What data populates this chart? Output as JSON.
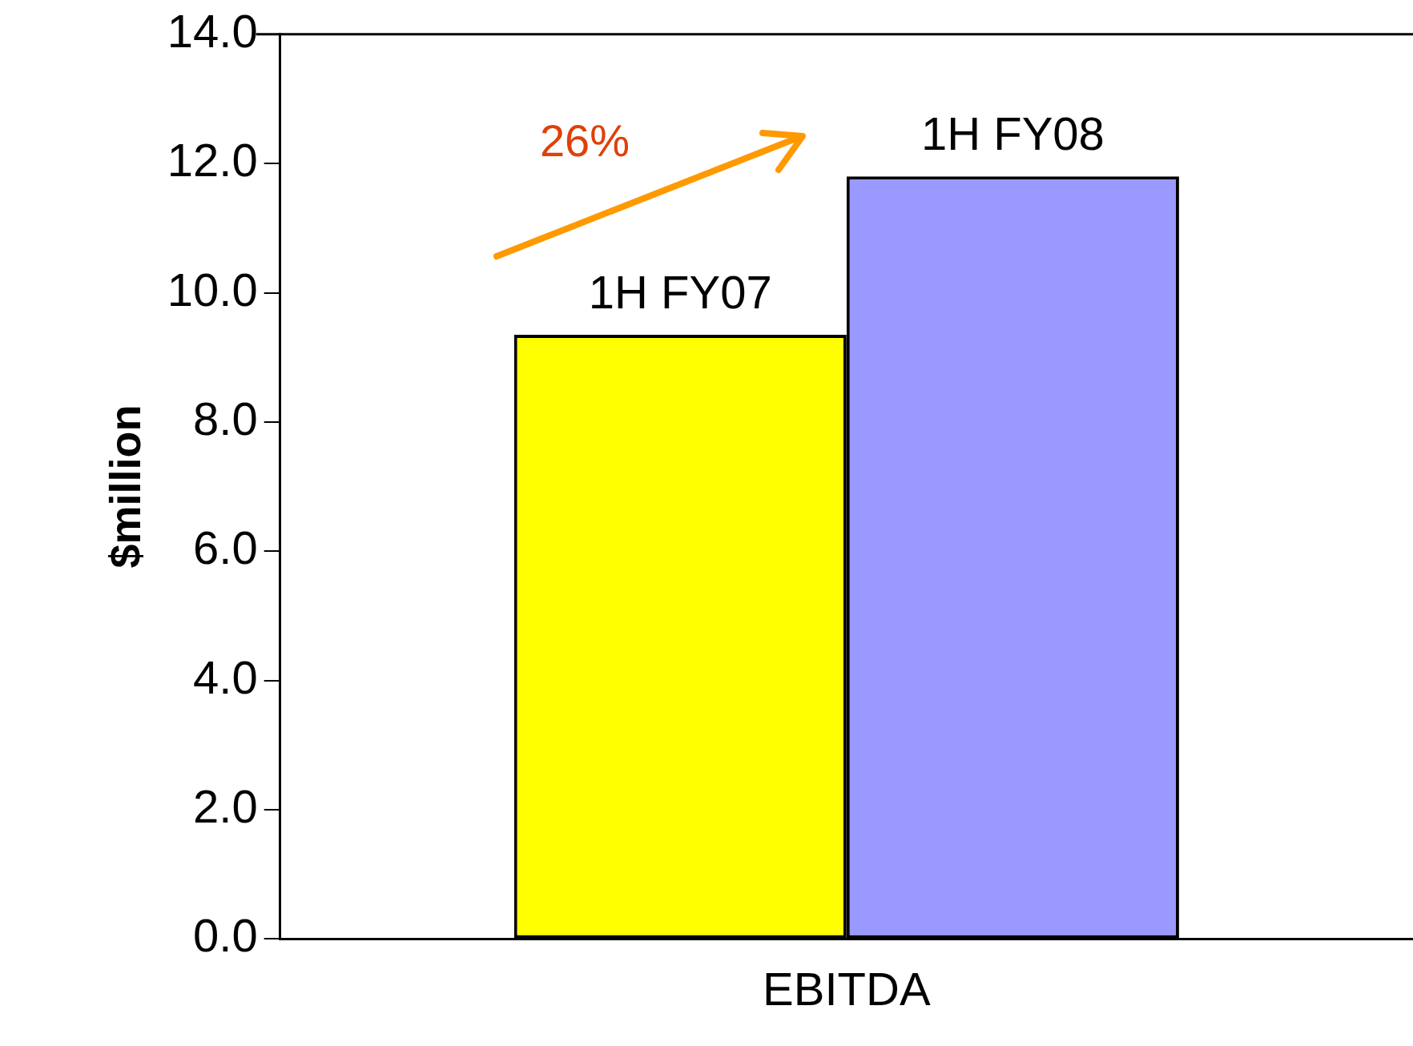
{
  "chart_data": {
    "type": "bar",
    "ylabel": "$million",
    "categories": [
      "EBITDA"
    ],
    "series": [
      {
        "name": "1H FY07",
        "color": "#ffff00",
        "values": [
          9.35
        ]
      },
      {
        "name": "1H FY08",
        "color": "#9999ff",
        "values": [
          11.8
        ]
      }
    ],
    "ylim": [
      0,
      14
    ],
    "yticks": [
      {
        "value": 0,
        "label": "0.0"
      },
      {
        "value": 2,
        "label": "2.0"
      },
      {
        "value": 4,
        "label": "4.0"
      },
      {
        "value": 6,
        "label": "6.0"
      },
      {
        "value": 8,
        "label": "8.0"
      },
      {
        "value": 10,
        "label": "10.0"
      },
      {
        "value": 12,
        "label": "12.0"
      },
      {
        "value": 14,
        "label": "14.0"
      }
    ],
    "annotations": [
      "26%"
    ],
    "grid": false,
    "legend": false
  }
}
